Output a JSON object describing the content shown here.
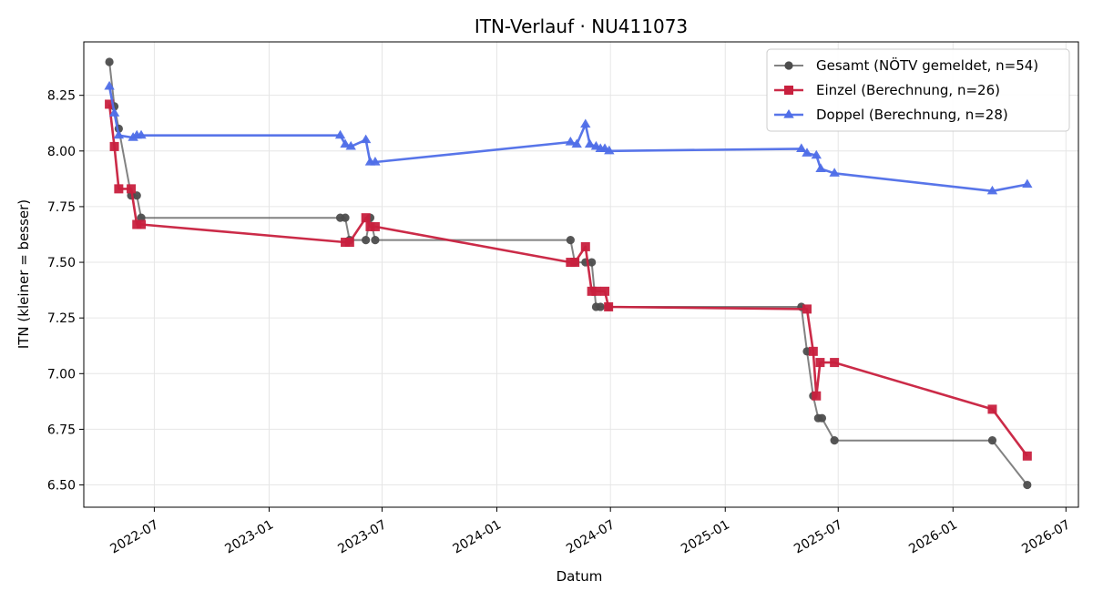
{
  "chart_data": {
    "type": "line",
    "title": "ITN-Verlauf · NU411073",
    "xlabel": "Datum",
    "ylabel": "ITN  (kleiner = besser)",
    "x_axis_type": "date",
    "xlim": [
      "2022-03-10",
      "2026-07-21"
    ],
    "ylim": [
      6.4,
      8.49
    ],
    "x_ticks": [
      "2022-07-01",
      "2023-01-01",
      "2023-07-01",
      "2024-01-01",
      "2024-07-01",
      "2025-01-01",
      "2025-07-01",
      "2026-01-01",
      "2026-07-01"
    ],
    "x_tick_labels": [
      "2022-07",
      "2023-01",
      "2023-07",
      "2024-01",
      "2024-07",
      "2025-01",
      "2025-07",
      "2026-01",
      "2026-07"
    ],
    "y_ticks": [
      6.5,
      6.75,
      7.0,
      7.25,
      7.5,
      7.75,
      8.0,
      8.25
    ],
    "y_tick_labels": [
      "6.50",
      "6.75",
      "7.00",
      "7.25",
      "7.50",
      "7.75",
      "8.00",
      "8.25"
    ],
    "grid": true,
    "legend_position": "top-right",
    "series": [
      {
        "name": "Gesamt (NÖTV gemeldet, n=54)",
        "color": "#4d4d4d",
        "marker": "circle",
        "points": [
          {
            "x": "2022-04-20",
            "y": 8.4
          },
          {
            "x": "2022-04-28",
            "y": 8.2
          },
          {
            "x": "2022-05-05",
            "y": 8.1
          },
          {
            "x": "2022-05-25",
            "y": 7.8
          },
          {
            "x": "2022-06-03",
            "y": 7.8
          },
          {
            "x": "2022-06-10",
            "y": 7.7
          },
          {
            "x": "2023-04-25",
            "y": 7.7
          },
          {
            "x": "2023-05-03",
            "y": 7.7
          },
          {
            "x": "2023-05-10",
            "y": 7.6
          },
          {
            "x": "2023-06-05",
            "y": 7.6
          },
          {
            "x": "2023-06-12",
            "y": 7.7
          },
          {
            "x": "2023-06-20",
            "y": 7.6
          },
          {
            "x": "2024-04-28",
            "y": 7.6
          },
          {
            "x": "2024-05-05",
            "y": 7.5
          },
          {
            "x": "2024-05-22",
            "y": 7.5
          },
          {
            "x": "2024-06-01",
            "y": 7.5
          },
          {
            "x": "2024-06-08",
            "y": 7.3
          },
          {
            "x": "2024-06-15",
            "y": 7.3
          },
          {
            "x": "2024-06-28",
            "y": 7.3
          },
          {
            "x": "2025-05-03",
            "y": 7.3
          },
          {
            "x": "2025-05-12",
            "y": 7.1
          },
          {
            "x": "2025-05-22",
            "y": 6.9
          },
          {
            "x": "2025-05-30",
            "y": 6.8
          },
          {
            "x": "2025-06-05",
            "y": 6.8
          },
          {
            "x": "2025-06-25",
            "y": 6.7
          },
          {
            "x": "2026-03-05",
            "y": 6.7
          },
          {
            "x": "2026-04-30",
            "y": 6.5
          }
        ]
      },
      {
        "name": "Einzel (Berechnung, n=26)",
        "color": "#c8203e",
        "marker": "square",
        "points": [
          {
            "x": "2022-04-20",
            "y": 8.21
          },
          {
            "x": "2022-04-28",
            "y": 8.02
          },
          {
            "x": "2022-05-05",
            "y": 7.83
          },
          {
            "x": "2022-05-25",
            "y": 7.83
          },
          {
            "x": "2022-06-03",
            "y": 7.67
          },
          {
            "x": "2022-06-10",
            "y": 7.67
          },
          {
            "x": "2023-05-03",
            "y": 7.59
          },
          {
            "x": "2023-05-10",
            "y": 7.59
          },
          {
            "x": "2023-06-05",
            "y": 7.7
          },
          {
            "x": "2023-06-12",
            "y": 7.66
          },
          {
            "x": "2023-06-20",
            "y": 7.66
          },
          {
            "x": "2024-04-28",
            "y": 7.5
          },
          {
            "x": "2024-05-05",
            "y": 7.5
          },
          {
            "x": "2024-05-22",
            "y": 7.57
          },
          {
            "x": "2024-06-01",
            "y": 7.37
          },
          {
            "x": "2024-06-08",
            "y": 7.37
          },
          {
            "x": "2024-06-22",
            "y": 7.37
          },
          {
            "x": "2024-06-28",
            "y": 7.3
          },
          {
            "x": "2025-05-12",
            "y": 7.29
          },
          {
            "x": "2025-05-22",
            "y": 7.1
          },
          {
            "x": "2025-05-27",
            "y": 6.9
          },
          {
            "x": "2025-06-02",
            "y": 7.05
          },
          {
            "x": "2025-06-25",
            "y": 7.05
          },
          {
            "x": "2026-03-05",
            "y": 6.84
          },
          {
            "x": "2026-04-30",
            "y": 6.63
          }
        ]
      },
      {
        "name": "Doppel (Berechnung, n=28)",
        "color": "#4f6ee8",
        "marker": "triangle",
        "points": [
          {
            "x": "2022-04-20",
            "y": 8.29
          },
          {
            "x": "2022-04-28",
            "y": 8.17
          },
          {
            "x": "2022-05-05",
            "y": 8.07
          },
          {
            "x": "2022-05-28",
            "y": 8.06
          },
          {
            "x": "2022-06-03",
            "y": 8.07
          },
          {
            "x": "2022-06-10",
            "y": 8.07
          },
          {
            "x": "2023-04-25",
            "y": 8.07
          },
          {
            "x": "2023-05-03",
            "y": 8.03
          },
          {
            "x": "2023-05-12",
            "y": 8.02
          },
          {
            "x": "2023-06-05",
            "y": 8.05
          },
          {
            "x": "2023-06-12",
            "y": 7.95
          },
          {
            "x": "2023-06-20",
            "y": 7.95
          },
          {
            "x": "2024-04-28",
            "y": 8.04
          },
          {
            "x": "2024-05-08",
            "y": 8.03
          },
          {
            "x": "2024-05-22",
            "y": 8.12
          },
          {
            "x": "2024-05-29",
            "y": 8.03
          },
          {
            "x": "2024-06-08",
            "y": 8.02
          },
          {
            "x": "2024-06-15",
            "y": 8.01
          },
          {
            "x": "2024-06-22",
            "y": 8.01
          },
          {
            "x": "2024-06-29",
            "y": 8.0
          },
          {
            "x": "2025-05-03",
            "y": 8.01
          },
          {
            "x": "2025-05-12",
            "y": 7.99
          },
          {
            "x": "2025-05-27",
            "y": 7.98
          },
          {
            "x": "2025-06-03",
            "y": 7.92
          },
          {
            "x": "2025-06-25",
            "y": 7.9
          },
          {
            "x": "2026-03-05",
            "y": 7.82
          },
          {
            "x": "2026-04-30",
            "y": 7.85
          }
        ]
      }
    ]
  }
}
